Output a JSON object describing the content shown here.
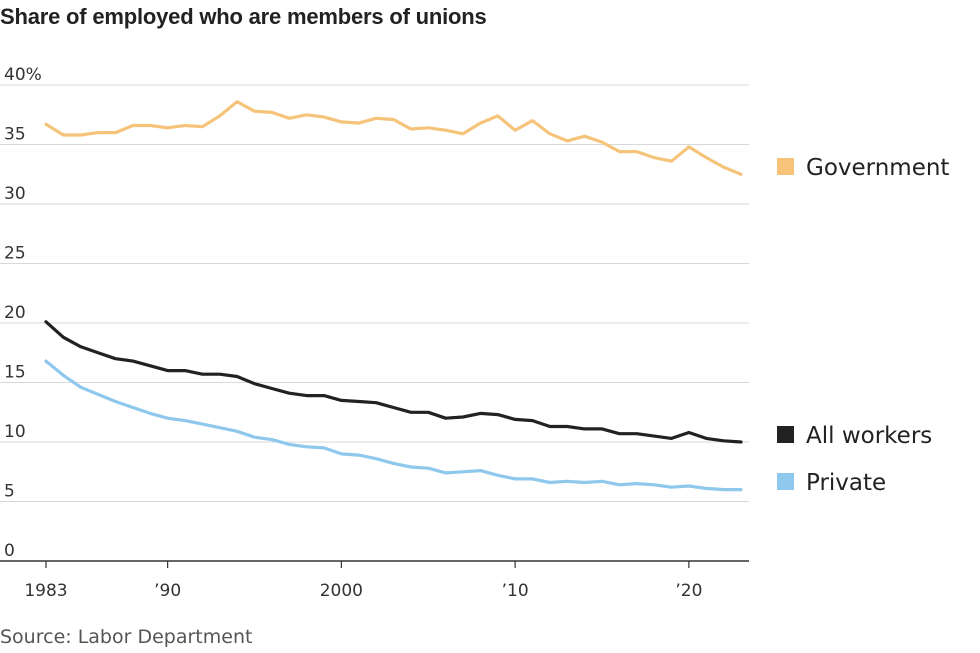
{
  "title": "Share of employed who are members of unions",
  "source": "Source: Labor Department",
  "chart_data": {
    "type": "line",
    "title": "Share of employed who are members of unions",
    "xlabel": "",
    "ylabel": "",
    "xlim": [
      1983,
      2023
    ],
    "ylim": [
      0,
      40
    ],
    "y_unit": "%",
    "grid": true,
    "legend_position": "right",
    "y_ticks": [
      {
        "value": 0,
        "label": "0"
      },
      {
        "value": 5,
        "label": "5"
      },
      {
        "value": 10,
        "label": "10"
      },
      {
        "value": 15,
        "label": "15"
      },
      {
        "value": 20,
        "label": "20"
      },
      {
        "value": 25,
        "label": "25"
      },
      {
        "value": 30,
        "label": "30"
      },
      {
        "value": 35,
        "label": "35"
      },
      {
        "value": 40,
        "label": "40%"
      }
    ],
    "x_ticks": [
      {
        "value": 1983,
        "label": "1983"
      },
      {
        "value": 1990,
        "label": "’90"
      },
      {
        "value": 2000,
        "label": "2000"
      },
      {
        "value": 2010,
        "label": "’10"
      },
      {
        "value": 2020,
        "label": "’20"
      }
    ],
    "x": [
      1983,
      1984,
      1985,
      1986,
      1987,
      1988,
      1989,
      1990,
      1991,
      1992,
      1993,
      1994,
      1995,
      1996,
      1997,
      1998,
      1999,
      2000,
      2001,
      2002,
      2003,
      2004,
      2005,
      2006,
      2007,
      2008,
      2009,
      2010,
      2011,
      2012,
      2013,
      2014,
      2015,
      2016,
      2017,
      2018,
      2019,
      2020,
      2021,
      2022,
      2023
    ],
    "series": [
      {
        "name": "Government",
        "color": "#f5c47a",
        "values": [
          36.7,
          35.8,
          35.8,
          36.0,
          36.0,
          36.6,
          36.6,
          36.4,
          36.6,
          36.5,
          37.4,
          38.6,
          37.8,
          37.7,
          37.2,
          37.5,
          37.3,
          36.9,
          36.8,
          37.2,
          37.1,
          36.3,
          36.4,
          36.2,
          35.9,
          36.8,
          37.4,
          36.2,
          37.0,
          35.9,
          35.3,
          35.7,
          35.2,
          34.4,
          34.4,
          33.9,
          33.6,
          34.8,
          33.9,
          33.1,
          32.5
        ]
      },
      {
        "name": "All workers",
        "color": "#222222",
        "values": [
          20.1,
          18.8,
          18.0,
          17.5,
          17.0,
          16.8,
          16.4,
          16.0,
          16.0,
          15.7,
          15.7,
          15.5,
          14.9,
          14.5,
          14.1,
          13.9,
          13.9,
          13.5,
          13.4,
          13.3,
          12.9,
          12.5,
          12.5,
          12.0,
          12.1,
          12.4,
          12.3,
          11.9,
          11.8,
          11.3,
          11.3,
          11.1,
          11.1,
          10.7,
          10.7,
          10.5,
          10.3,
          10.8,
          10.3,
          10.1,
          10.0
        ]
      },
      {
        "name": "Private",
        "color": "#8ec8ec",
        "values": [
          16.8,
          15.6,
          14.6,
          14.0,
          13.4,
          12.9,
          12.4,
          12.0,
          11.8,
          11.5,
          11.2,
          10.9,
          10.4,
          10.2,
          9.8,
          9.6,
          9.5,
          9.0,
          8.9,
          8.6,
          8.2,
          7.9,
          7.8,
          7.4,
          7.5,
          7.6,
          7.2,
          6.9,
          6.9,
          6.6,
          6.7,
          6.6,
          6.7,
          6.4,
          6.5,
          6.4,
          6.2,
          6.3,
          6.1,
          6.0,
          6.0
        ]
      }
    ]
  }
}
